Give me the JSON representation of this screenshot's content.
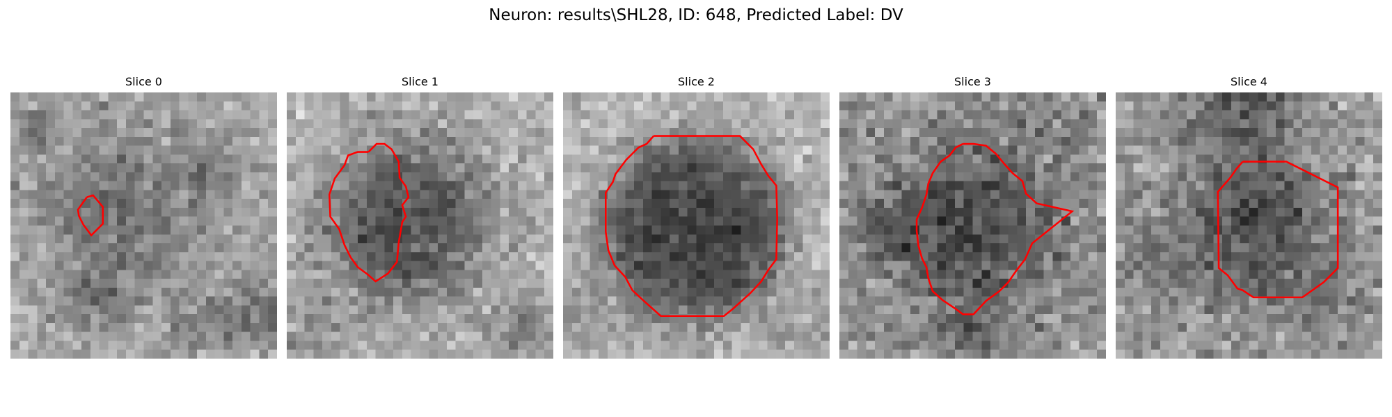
{
  "figure": {
    "title": "Neuron: results\\SHL28, ID: 648, Predicted Label: DV"
  },
  "grid_size": 30,
  "contour_color": "#ff0000",
  "slices": [
    {
      "label": "Slice 0",
      "seed": 11,
      "noise": 26,
      "background": {
        "base": 172,
        "dark_spots": [
          [
            2.5,
            4.5,
            1.5,
            0.55
          ],
          [
            22.5,
            8.5,
            2.0,
            0.35
          ],
          [
            28.0,
            25.0,
            3.0,
            0.5
          ],
          [
            9.0,
            23.5,
            2.5,
            0.4
          ],
          [
            20.5,
            26.5,
            2.0,
            0.35
          ]
        ]
      },
      "blob": {
        "cx": 12.5,
        "cy": 13.0,
        "r": 7.0,
        "depth": 70,
        "softness": 3.5
      },
      "contour": [
        [
          8.6,
          11.8
        ],
        [
          9.3,
          11.6
        ],
        [
          10.4,
          12.9
        ],
        [
          10.4,
          14.8
        ],
        [
          9.6,
          15.6
        ],
        [
          9.1,
          16.1
        ],
        [
          8.2,
          14.9
        ],
        [
          7.7,
          13.9
        ],
        [
          7.6,
          13.2
        ],
        [
          8.6,
          11.8
        ]
      ]
    },
    {
      "label": "Slice 1",
      "seed": 23,
      "noise": 27,
      "background": {
        "base": 180,
        "dark_spots": [
          [
            27.0,
            26.0,
            2.5,
            0.45
          ],
          [
            3.0,
            27.5,
            2.5,
            0.3
          ]
        ]
      },
      "blob": {
        "cx": 13.5,
        "cy": 14.5,
        "r": 8.6,
        "depth": 100,
        "softness": 2.0
      },
      "contour": [
        [
          9.2,
          6.7
        ],
        [
          10.1,
          5.8
        ],
        [
          11.0,
          5.8
        ],
        [
          11.8,
          6.4
        ],
        [
          12.6,
          7.8
        ],
        [
          12.7,
          9.6
        ],
        [
          13.4,
          10.6
        ],
        [
          13.7,
          11.8
        ],
        [
          13.0,
          12.7
        ],
        [
          13.4,
          14.0
        ],
        [
          13.0,
          14.6
        ],
        [
          12.6,
          16.9
        ],
        [
          12.4,
          19.1
        ],
        [
          11.4,
          20.4
        ],
        [
          10.0,
          21.3
        ],
        [
          9.1,
          20.5
        ],
        [
          8.0,
          19.7
        ],
        [
          7.2,
          18.6
        ],
        [
          6.5,
          17.2
        ],
        [
          5.9,
          15.4
        ],
        [
          4.9,
          14.0
        ],
        [
          4.8,
          11.5
        ],
        [
          5.4,
          9.7
        ],
        [
          6.5,
          8.2
        ],
        [
          6.9,
          7.1
        ],
        [
          8.0,
          6.7
        ],
        [
          9.2,
          6.7
        ]
      ]
    },
    {
      "label": "Slice 2",
      "seed": 37,
      "noise": 24,
      "background": {
        "base": 182,
        "dark_spots": [
          [
            1.5,
            26.0,
            2.5,
            0.25
          ],
          [
            27.5,
            27.0,
            2.5,
            0.25
          ]
        ]
      },
      "blob": {
        "cx": 14.7,
        "cy": 15.5,
        "r": 10.2,
        "depth": 110,
        "softness": 1.4
      },
      "contour": [
        [
          10.2,
          4.9
        ],
        [
          19.9,
          4.9
        ],
        [
          21.4,
          6.4
        ],
        [
          22.3,
          8.1
        ],
        [
          23.1,
          9.4
        ],
        [
          24.0,
          10.5
        ],
        [
          24.1,
          14.2
        ],
        [
          24.0,
          18.8
        ],
        [
          23.1,
          20.0
        ],
        [
          22.3,
          21.3
        ],
        [
          21.1,
          22.6
        ],
        [
          19.1,
          24.4
        ],
        [
          18.1,
          25.2
        ],
        [
          11.0,
          25.2
        ],
        [
          9.1,
          23.5
        ],
        [
          7.8,
          22.3
        ],
        [
          7.0,
          20.8
        ],
        [
          5.8,
          19.5
        ],
        [
          5.1,
          17.8
        ],
        [
          4.8,
          15.7
        ],
        [
          4.8,
          11.3
        ],
        [
          5.6,
          10.1
        ],
        [
          5.9,
          9.2
        ],
        [
          7.1,
          7.6
        ],
        [
          8.5,
          6.2
        ],
        [
          9.4,
          5.8
        ],
        [
          10.2,
          4.9
        ]
      ]
    },
    {
      "label": "Slice 3",
      "seed": 51,
      "noise": 32,
      "background": {
        "base": 150,
        "dark_spots": [
          [
            5.0,
            16.0,
            3.0,
            0.35
          ],
          [
            15.0,
            27.0,
            3.0,
            0.35
          ],
          [
            26.0,
            4.0,
            2.0,
            0.25
          ]
        ]
      },
      "blob": {
        "cx": 15.5,
        "cy": 14.8,
        "r": 8.8,
        "depth": 70,
        "softness": 2.0
      },
      "contour": [
        [
          13.9,
          5.8
        ],
        [
          15.1,
          5.8
        ],
        [
          16.5,
          6.0
        ],
        [
          17.6,
          6.9
        ],
        [
          18.6,
          8.1
        ],
        [
          19.5,
          9.1
        ],
        [
          20.6,
          10.0
        ],
        [
          21.0,
          11.4
        ],
        [
          22.2,
          12.5
        ],
        [
          26.2,
          13.4
        ],
        [
          21.7,
          17.0
        ],
        [
          20.9,
          18.8
        ],
        [
          19.9,
          20.1
        ],
        [
          19.0,
          21.4
        ],
        [
          18.0,
          22.4
        ],
        [
          16.5,
          23.5
        ],
        [
          15.1,
          25.0
        ],
        [
          14.7,
          25.0
        ],
        [
          14.4,
          25.0
        ],
        [
          13.9,
          25.0
        ],
        [
          13.1,
          24.4
        ],
        [
          11.6,
          23.4
        ],
        [
          10.5,
          22.4
        ],
        [
          10.0,
          20.9
        ],
        [
          9.8,
          19.7
        ],
        [
          9.3,
          18.7
        ],
        [
          8.9,
          17.3
        ],
        [
          8.7,
          15.6
        ],
        [
          8.7,
          14.3
        ],
        [
          9.3,
          13.0
        ],
        [
          9.8,
          11.5
        ],
        [
          10.0,
          10.3
        ],
        [
          10.5,
          9.1
        ],
        [
          11.4,
          7.8
        ],
        [
          12.4,
          7.1
        ],
        [
          13.1,
          6.2
        ],
        [
          13.9,
          5.8
        ]
      ]
    },
    {
      "label": "Slice 4",
      "seed": 67,
      "noise": 30,
      "background": {
        "base": 160,
        "dark_spots": [
          [
            14.5,
            1.5,
            5.0,
            0.5
          ],
          [
            4.0,
            18.0,
            3.0,
            0.25
          ],
          [
            25.0,
            24.0,
            3.0,
            0.2
          ]
        ]
      },
      "blob": {
        "cx": 16.0,
        "cy": 16.5,
        "r": 7.8,
        "depth": 75,
        "softness": 2.2
      },
      "contour": [
        [
          14.3,
          7.8
        ],
        [
          19.2,
          7.8
        ],
        [
          25.0,
          10.7
        ],
        [
          25.0,
          19.8
        ],
        [
          23.4,
          21.4
        ],
        [
          21.0,
          23.1
        ],
        [
          15.5,
          23.1
        ],
        [
          14.3,
          22.3
        ],
        [
          13.7,
          22.1
        ],
        [
          12.6,
          20.6
        ],
        [
          11.6,
          19.8
        ],
        [
          11.5,
          11.2
        ],
        [
          12.9,
          9.6
        ],
        [
          13.6,
          8.6
        ],
        [
          14.3,
          7.8
        ]
      ]
    }
  ]
}
